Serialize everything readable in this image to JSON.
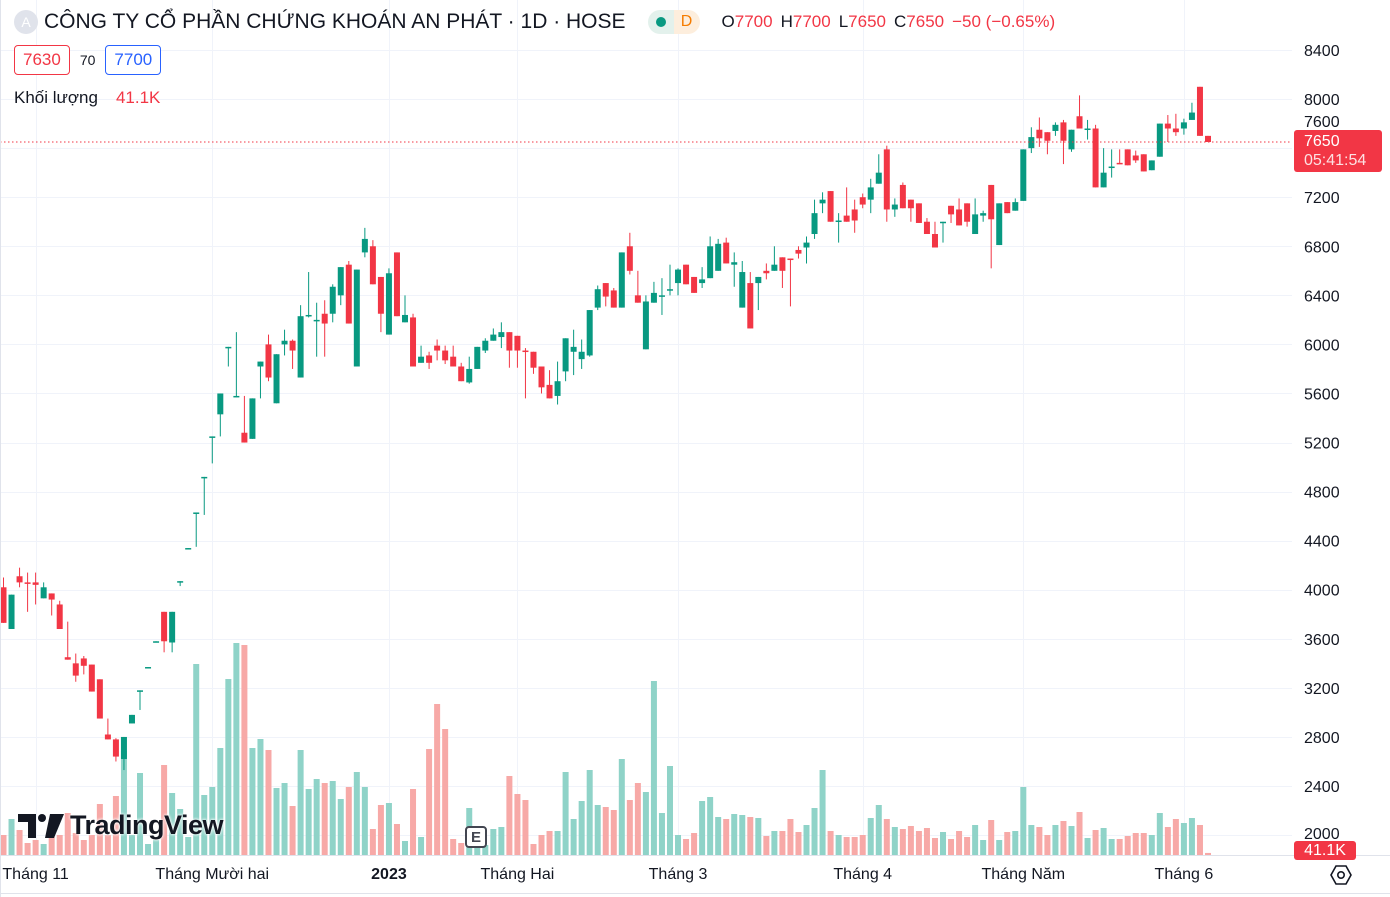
{
  "header": {
    "symbol_icon_letter": "A",
    "title": "CÔNG TY CỔ PHẦN CHỨNG KHOÁN AN PHÁT · 1D · HOSE",
    "market_status_badge": "D",
    "ohlc": {
      "o_label": "O",
      "o": "7700",
      "h_label": "H",
      "h": "7700",
      "l_label": "L",
      "l": "7650",
      "c_label": "C",
      "c": "7650",
      "change": "−50 (−0.65%)"
    },
    "bid": "7630",
    "spread": "70",
    "ask": "7700",
    "volume_label": "Khối lượng",
    "volume_value": "41.1K"
  },
  "price_tag": {
    "price": "7650",
    "countdown": "05:41:54"
  },
  "volume_tag": "41.1K",
  "logo_text": "TradingView",
  "earnings_marker": "E",
  "colors": {
    "up": "#089981",
    "down": "#f23645",
    "up_volume": "#8fd3c8",
    "down_volume": "#f7a9a7",
    "grid": "#f0f3fa"
  },
  "chart_data": {
    "type": "candlestick",
    "title": "CÔNG TY CỔ PHẦN CHỨNG KHOÁN AN PHÁT · 1D · HOSE",
    "ylim": [
      1950,
      8420
    ],
    "y_ticks": [
      "8400",
      "8000",
      "7600",
      "7200",
      "6800",
      "6400",
      "6000",
      "5600",
      "5200",
      "4800",
      "4400",
      "4000",
      "3600",
      "3200",
      "2800",
      "2400",
      "2000"
    ],
    "x_ticks": [
      {
        "label": "Tháng 11",
        "index": 4,
        "bold": false
      },
      {
        "label": "Tháng Mười hai",
        "index": 26,
        "bold": false
      },
      {
        "label": "2023",
        "index": 48,
        "bold": true
      },
      {
        "label": "Tháng Hai",
        "index": 64,
        "bold": false
      },
      {
        "label": "Tháng 3",
        "index": 84,
        "bold": false
      },
      {
        "label": "Tháng 4",
        "index": 107,
        "bold": false
      },
      {
        "label": "Tháng Năm",
        "index": 127,
        "bold": false
      },
      {
        "label": "Tháng 6",
        "index": 147,
        "bold": false
      }
    ],
    "last_price": 7650,
    "candles_ohlc": [
      [
        4020,
        4100,
        3730,
        3730
      ],
      [
        3680,
        3960,
        3680,
        3960
      ],
      [
        4110,
        4180,
        4020,
        4060
      ],
      [
        4060,
        4140,
        3820,
        4050
      ],
      [
        4060,
        4140,
        3880,
        4040
      ],
      [
        3930,
        4060,
        3930,
        4020
      ],
      [
        3970,
        3970,
        3790,
        3920
      ],
      [
        3880,
        3910,
        3680,
        3680
      ],
      [
        3450,
        3740,
        3430,
        3430
      ],
      [
        3400,
        3480,
        3250,
        3300
      ],
      [
        3440,
        3460,
        3310,
        3380
      ],
      [
        3390,
        3390,
        3170,
        3170
      ],
      [
        3270,
        3270,
        2950,
        2950
      ],
      [
        2820,
        2950,
        2780,
        2780
      ],
      [
        2780,
        2790,
        2600,
        2640
      ],
      [
        2620,
        2800,
        2530,
        2800
      ],
      [
        2910,
        2980,
        2910,
        2980
      ],
      [
        3170,
        3180,
        3020,
        3180
      ],
      [
        3360,
        3370,
        3360,
        3370
      ],
      [
        3570,
        3580,
        3570,
        3580
      ],
      [
        3820,
        3820,
        3490,
        3580
      ],
      [
        3570,
        3820,
        3490,
        3820
      ],
      [
        4060,
        4070,
        4030,
        4070
      ],
      [
        4330,
        4340,
        4330,
        4340
      ],
      [
        4620,
        4630,
        4350,
        4630
      ],
      [
        4910,
        4920,
        4610,
        4920
      ],
      [
        5240,
        5250,
        5030,
        5250
      ],
      [
        5430,
        5600,
        5250,
        5600
      ],
      [
        5970,
        5980,
        5820,
        5980
      ],
      [
        5570,
        6100,
        5570,
        5580
      ],
      [
        5280,
        5580,
        5200,
        5200
      ],
      [
        5230,
        5560,
        5230,
        5560
      ],
      [
        5820,
        5860,
        5560,
        5860
      ],
      [
        6000,
        6080,
        5700,
        5730
      ],
      [
        5520,
        5920,
        5520,
        5920
      ],
      [
        6000,
        6120,
        5910,
        6030
      ],
      [
        6030,
        6040,
        5800,
        5950
      ],
      [
        5730,
        6320,
        5730,
        6230
      ],
      [
        6230,
        6590,
        6220,
        6240
      ],
      [
        6195,
        6340,
        5900,
        6200
      ],
      [
        6250,
        6360,
        5900,
        6170
      ],
      [
        6250,
        6490,
        6180,
        6470
      ],
      [
        6400,
        6630,
        6320,
        6630
      ],
      [
        6650,
        6680,
        6170,
        6170
      ],
      [
        5820,
        6610,
        5820,
        6610
      ],
      [
        6750,
        6950,
        6710,
        6860
      ],
      [
        6800,
        6850,
        6490,
        6490
      ],
      [
        6550,
        6550,
        6100,
        6250
      ],
      [
        6080,
        6620,
        6080,
        6580
      ],
      [
        6750,
        6750,
        6230,
        6230
      ],
      [
        6180,
        6400,
        6180,
        6240
      ],
      [
        6220,
        6250,
        5820,
        5820
      ],
      [
        5850,
        5990,
        5850,
        5900
      ],
      [
        5910,
        5940,
        5800,
        5850
      ],
      [
        5990,
        6040,
        5870,
        5950
      ],
      [
        5950,
        5990,
        5840,
        5870
      ],
      [
        5900,
        5990,
        5820,
        5820
      ],
      [
        5820,
        5850,
        5700,
        5700
      ],
      [
        5690,
        5900,
        5680,
        5800
      ],
      [
        5800,
        5980,
        5800,
        5980
      ],
      [
        5950,
        6050,
        5930,
        6030
      ],
      [
        6030,
        6130,
        6030,
        6080
      ],
      [
        6060,
        6180,
        5970,
        6100
      ],
      [
        6100,
        6100,
        5810,
        5950
      ],
      [
        6070,
        6070,
        5810,
        5950
      ],
      [
        5950,
        5970,
        5560,
        5940
      ],
      [
        5940,
        5940,
        5760,
        5810
      ],
      [
        5820,
        5820,
        5600,
        5650
      ],
      [
        5670,
        5790,
        5560,
        5560
      ],
      [
        5580,
        5860,
        5510,
        5700
      ],
      [
        5780,
        6050,
        5700,
        6050
      ],
      [
        5940,
        6120,
        5750,
        5980
      ],
      [
        5880,
        6040,
        5800,
        5940
      ],
      [
        5910,
        6280,
        5900,
        6280
      ],
      [
        6300,
        6480,
        6280,
        6450
      ],
      [
        6500,
        6500,
        6310,
        6390
      ],
      [
        6440,
        6460,
        6300,
        6300
      ],
      [
        6300,
        6750,
        6300,
        6750
      ],
      [
        6800,
        6910,
        6570,
        6600
      ],
      [
        6400,
        6600,
        6340,
        6340
      ],
      [
        5960,
        6400,
        5960,
        6350
      ],
      [
        6340,
        6510,
        6340,
        6420
      ],
      [
        6390,
        6540,
        6240,
        6400
      ],
      [
        6440,
        6650,
        6400,
        6450
      ],
      [
        6500,
        6620,
        6400,
        6610
      ],
      [
        6650,
        6650,
        6490,
        6490
      ],
      [
        6550,
        6550,
        6420,
        6420
      ],
      [
        6500,
        6630,
        6460,
        6530
      ],
      [
        6540,
        6880,
        6540,
        6800
      ],
      [
        6600,
        6860,
        6600,
        6820
      ],
      [
        6830,
        6870,
        6660,
        6660
      ],
      [
        6650,
        6750,
        6470,
        6670
      ],
      [
        6300,
        6680,
        6300,
        6590
      ],
      [
        6500,
        6590,
        6130,
        6130
      ],
      [
        6500,
        6550,
        6280,
        6550
      ],
      [
        6600,
        6660,
        6530,
        6580
      ],
      [
        6600,
        6800,
        6600,
        6650
      ],
      [
        6710,
        6710,
        6460,
        6600
      ],
      [
        6700,
        6700,
        6310,
        6690
      ],
      [
        6770,
        6800,
        6700,
        6740
      ],
      [
        6790,
        6880,
        6660,
        6830
      ],
      [
        6900,
        7180,
        6860,
        7070
      ],
      [
        7150,
        7240,
        7070,
        7180
      ],
      [
        7250,
        7250,
        7000,
        7000
      ],
      [
        7000,
        7070,
        6830,
        7010
      ],
      [
        7050,
        7280,
        7000,
        7000
      ],
      [
        7100,
        7180,
        6910,
        7010
      ],
      [
        7200,
        7230,
        7110,
        7140
      ],
      [
        7180,
        7350,
        7070,
        7280
      ],
      [
        7310,
        7550,
        7310,
        7400
      ],
      [
        7590,
        7620,
        7000,
        7100
      ],
      [
        7100,
        7190,
        7040,
        7140
      ],
      [
        7300,
        7320,
        7110,
        7110
      ],
      [
        7180,
        7180,
        7000,
        7110
      ],
      [
        7150,
        7150,
        6990,
        6990
      ],
      [
        7000,
        7030,
        6900,
        6900
      ],
      [
        6900,
        7000,
        6790,
        6790
      ],
      [
        6990,
        7000,
        6830,
        7000
      ],
      [
        7130,
        7130,
        6990,
        7060
      ],
      [
        7100,
        7190,
        6970,
        6970
      ],
      [
        7150,
        7150,
        6960,
        7000
      ],
      [
        6900,
        7190,
        6900,
        7060
      ],
      [
        7050,
        7090,
        7000,
        7070
      ],
      [
        7300,
        7300,
        6620,
        7020
      ],
      [
        6810,
        7150,
        6810,
        7150
      ],
      [
        7160,
        7160,
        7070,
        7070
      ],
      [
        7090,
        7190,
        7090,
        7160
      ],
      [
        7170,
        7590,
        7170,
        7590
      ],
      [
        7600,
        7770,
        7560,
        7690
      ],
      [
        7750,
        7850,
        7610,
        7680
      ],
      [
        7730,
        7730,
        7550,
        7660
      ],
      [
        7740,
        7810,
        7700,
        7790
      ],
      [
        7810,
        7830,
        7470,
        7660
      ],
      [
        7590,
        7750,
        7570,
        7750
      ],
      [
        7860,
        8030,
        7760,
        7760
      ],
      [
        7750,
        7830,
        7670,
        7760
      ],
      [
        7760,
        7790,
        7280,
        7280
      ],
      [
        7280,
        7600,
        7280,
        7400
      ],
      [
        7440,
        7590,
        7360,
        7450
      ],
      [
        7480,
        7590,
        7470,
        7470
      ],
      [
        7590,
        7590,
        7460,
        7460
      ],
      [
        7540,
        7580,
        7480,
        7500
      ],
      [
        7550,
        7550,
        7410,
        7410
      ],
      [
        7420,
        7500,
        7420,
        7500
      ],
      [
        7530,
        7800,
        7530,
        7800
      ],
      [
        7800,
        7870,
        7650,
        7760
      ],
      [
        7760,
        7880,
        7700,
        7730
      ],
      [
        7760,
        7840,
        7710,
        7810
      ],
      [
        7830,
        7970,
        7830,
        7890
      ],
      [
        8100,
        8100,
        7700,
        7700
      ],
      [
        7700,
        7700,
        7650,
        7650
      ]
    ],
    "volume_k": [
      400,
      720,
      500,
      240,
      300,
      220,
      360,
      400,
      840,
      440,
      300,
      400,
      1020,
      400,
      1180,
      2080,
      400,
      1640,
      220,
      300,
      1800,
      1240,
      920,
      360,
      3820,
      1200,
      1360,
      2140,
      3520,
      4240,
      4200,
      2140,
      2320,
      2100,
      1340,
      1440,
      980,
      2100,
      1320,
      1520,
      1440,
      1480,
      1120,
      1360,
      1660,
      1360,
      520,
      1000,
      1040,
      620,
      280,
      1320,
      360,
      2120,
      3020,
      2520,
      320,
      240,
      940,
      200,
      200,
      520,
      560,
      1580,
      1220,
      1100,
      220,
      400,
      480,
      480,
      1660,
      720,
      1080,
      1700,
      1000,
      960,
      900,
      1920,
      1100,
      1440,
      1260,
      3480,
      840,
      1780,
      400,
      320,
      440,
      1080,
      1160,
      760,
      720,
      820,
      800,
      760,
      740,
      380,
      480,
      480,
      720,
      460,
      600,
      940,
      1700,
      480,
      400,
      360,
      360,
      400,
      740,
      1000,
      720,
      560,
      520,
      580,
      480,
      540,
      340,
      460,
      320,
      480,
      360,
      600,
      300,
      700,
      300,
      460,
      480,
      1360,
      600,
      560,
      400,
      600,
      680,
      580,
      860,
      340,
      500,
      540,
      320,
      320,
      380,
      440,
      440,
      400,
      840,
      560,
      720,
      640,
      740,
      600,
      41.1
    ]
  }
}
